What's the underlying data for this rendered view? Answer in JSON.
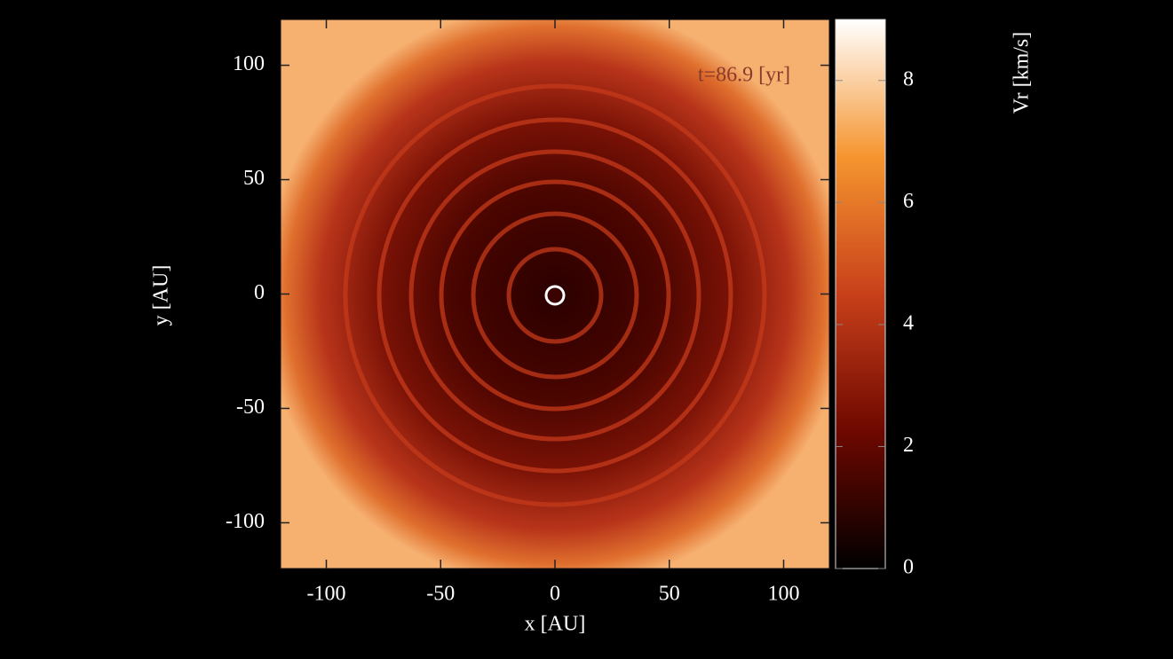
{
  "chart_data": {
    "type": "heatmap",
    "annotation": "t=86.9 [yr]",
    "xlabel": "x [AU]",
    "ylabel": "y [AU]",
    "xlim": [
      -120,
      120
    ],
    "xticks": [
      -100,
      -50,
      0,
      50,
      100
    ],
    "ylim": [
      -120,
      120
    ],
    "yticks": [
      -100,
      -50,
      0,
      50,
      100
    ],
    "colorbar_label": "Vr [km/s]",
    "clim": [
      0,
      9
    ],
    "cticks": [
      0,
      2,
      4,
      6,
      8
    ],
    "colormap": [
      "#000000",
      "#6e0800",
      "#c8401a",
      "#f5952f",
      "#ffffff"
    ]
  }
}
